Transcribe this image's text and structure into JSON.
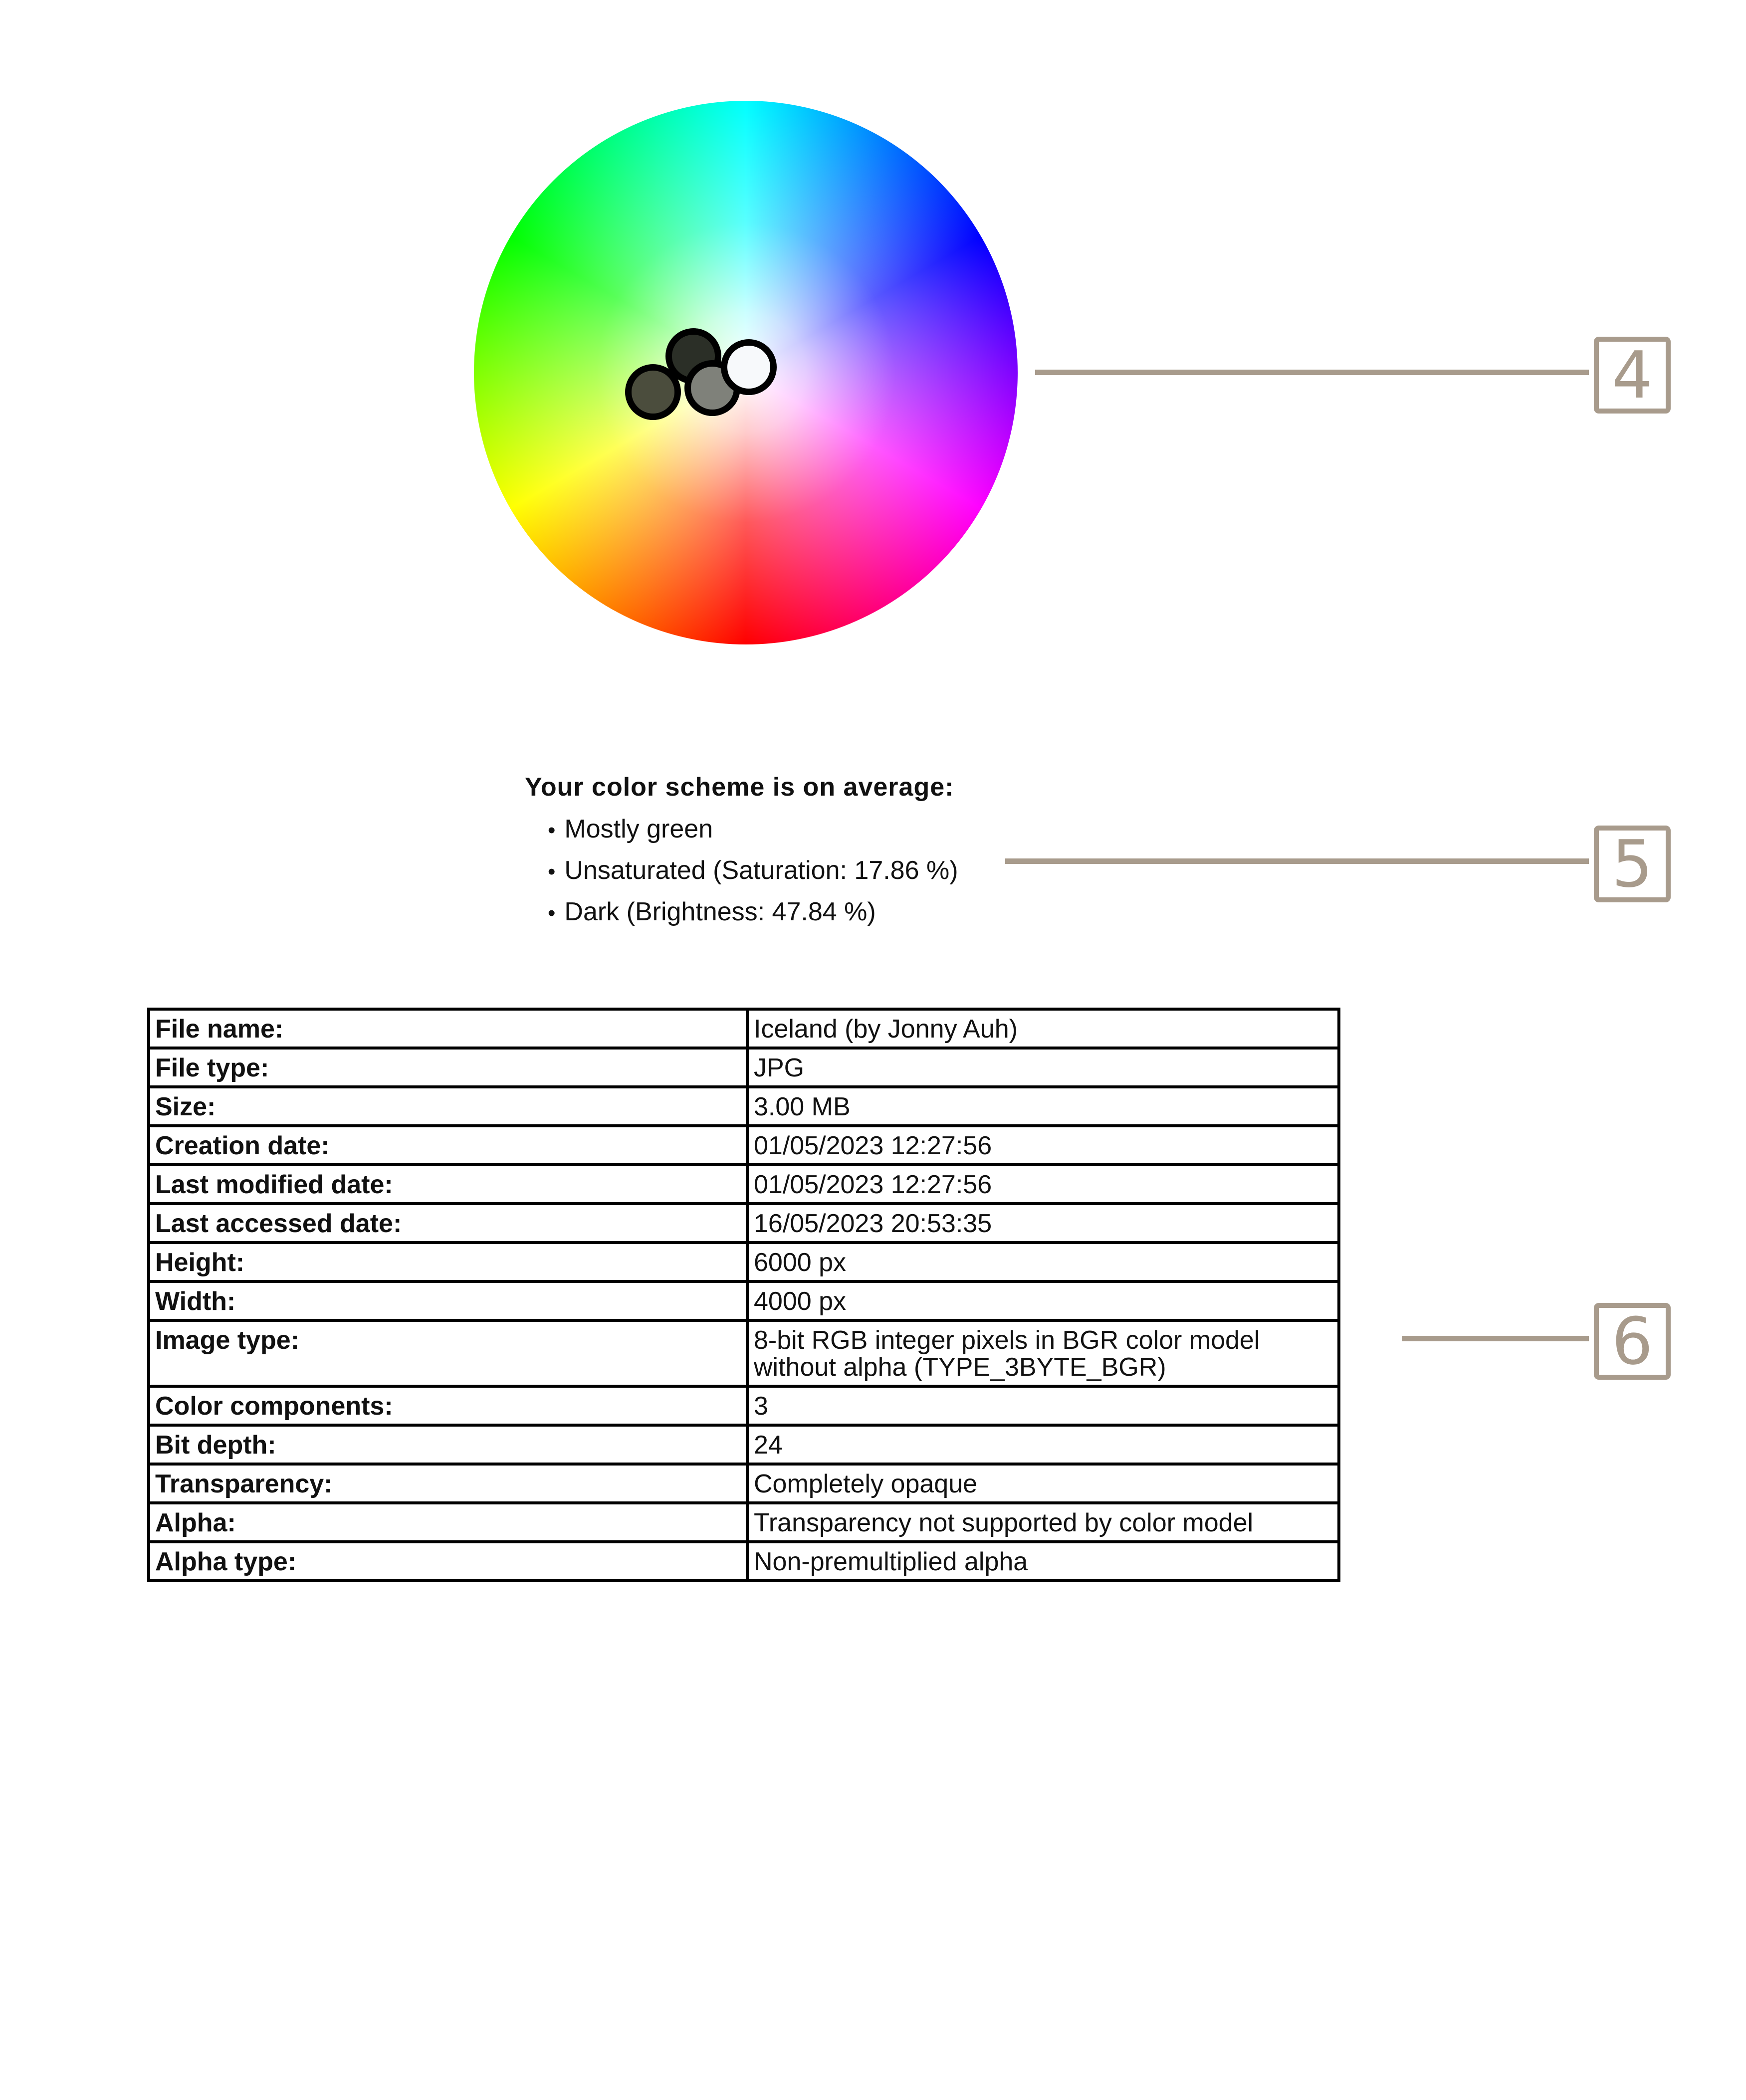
{
  "color_wheel": {
    "swatches": [
      {
        "name": "dark-gray-green",
        "color": "#2b2f27"
      },
      {
        "name": "olive-gray",
        "color": "#4b4d3d"
      },
      {
        "name": "medium-gray",
        "color": "#7f817a"
      },
      {
        "name": "near-white",
        "color": "#f7f9fb"
      }
    ]
  },
  "markers": {
    "wheel": "4",
    "summary": "5",
    "table": "6"
  },
  "summary": {
    "title": "Your color scheme is on average:",
    "items": [
      "Mostly green",
      "Unsaturated (Saturation: 17.86 %)",
      "Dark (Brightness: 47.84 %)"
    ]
  },
  "file_info": {
    "rows": [
      {
        "key": "File name:",
        "value": "Iceland (by Jonny Auh)"
      },
      {
        "key": "File type:",
        "value": "JPG"
      },
      {
        "key": "Size:",
        "value": "3.00 MB"
      },
      {
        "key": "Creation date:",
        "value": "01/05/2023 12:27:56"
      },
      {
        "key": "Last modified date:",
        "value": "01/05/2023 12:27:56"
      },
      {
        "key": "Last accessed date:",
        "value": "16/05/2023 20:53:35"
      },
      {
        "key": "Height:",
        "value": "6000 px"
      },
      {
        "key": "Width:",
        "value": "4000 px"
      },
      {
        "key": "Image type:",
        "value": "8-bit RGB integer pixels in BGR color model without alpha (TYPE_3BYTE_BGR)"
      },
      {
        "key": "Color components:",
        "value": "3"
      },
      {
        "key": "Bit depth:",
        "value": "24"
      },
      {
        "key": "Transparency:",
        "value": "Completely opaque"
      },
      {
        "key": "Alpha:",
        "value": "Transparency not supported by color model"
      },
      {
        "key": "Alpha type:",
        "value": "Non-premultiplied alpha"
      }
    ]
  },
  "colors": {
    "connector": "#a89b8c",
    "border": "#000000"
  }
}
